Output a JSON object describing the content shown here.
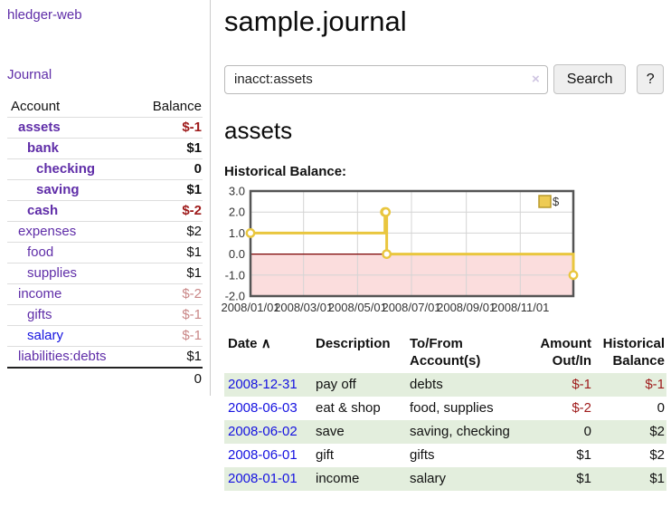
{
  "colors": {
    "link_purple": "#5f2da8",
    "link_blue": "#1512e0",
    "negative_strong": "#9e1a1a",
    "negative_faded": "#c98787",
    "row_stripe_green": "#e3eedd",
    "chart_line": "#e9c63e",
    "chart_marker_fill": "#ffffff",
    "chart_negative_fill": "#fbdddd",
    "chart_zero_line": "#7a0000",
    "chart_grid": "#d4d4d4",
    "chart_frame": "#545454",
    "legend_square_fill": "#eecb53",
    "legend_square_border": "#b9992c"
  },
  "sidebar": {
    "brand": "hledger-web",
    "journal_label": "Journal",
    "accounts": {
      "header_account": "Account",
      "header_balance": "Balance",
      "rows": [
        {
          "account": "assets",
          "balance": "$-1",
          "depth": 1,
          "bold": true,
          "neg": "strong"
        },
        {
          "account": "bank",
          "balance": "$1",
          "depth": 2,
          "bold": true,
          "neg": null
        },
        {
          "account": "checking",
          "balance": "0",
          "depth": 3,
          "bold": true,
          "neg": null
        },
        {
          "account": "saving",
          "balance": "$1",
          "depth": 3,
          "bold": true,
          "neg": null
        },
        {
          "account": "cash",
          "balance": "$-2",
          "depth": 2,
          "bold": true,
          "neg": "strong"
        },
        {
          "account": "expenses",
          "balance": "$2",
          "depth": 1,
          "bold": false,
          "neg": null
        },
        {
          "account": "food",
          "balance": "$1",
          "depth": 2,
          "bold": false,
          "neg": null
        },
        {
          "account": "supplies",
          "balance": "$1",
          "depth": 2,
          "bold": false,
          "neg": null
        },
        {
          "account": "income",
          "balance": "$-2",
          "depth": 1,
          "bold": false,
          "neg": "faded"
        },
        {
          "account": "gifts",
          "balance": "$-1",
          "depth": 2,
          "bold": false,
          "neg": "faded"
        },
        {
          "account": "salary",
          "balance": "$-1",
          "depth": 2,
          "bold": false,
          "neg": "faded",
          "link": "blue"
        },
        {
          "account": "liabilities:debts",
          "balance": "$1",
          "depth": 1,
          "bold": false,
          "neg": null
        }
      ],
      "total": "0"
    }
  },
  "main": {
    "title": "sample.journal",
    "search": {
      "value": "inacct:assets",
      "clear_icon": "×",
      "button_label": "Search",
      "help_label": "?"
    },
    "account_heading": "assets",
    "chart_label": "Historical Balance:"
  },
  "chart_data": {
    "type": "line",
    "step": true,
    "title": "Historical Balance",
    "legend": {
      "label": "$",
      "position": "top-right"
    },
    "x_range": [
      "2008-01-01",
      "2008-12-31"
    ],
    "ylim": [
      -2,
      3
    ],
    "grid": true,
    "negative_region_shaded": true,
    "y_ticks": [
      {
        "v": 3,
        "label": "3.0"
      },
      {
        "v": 2,
        "label": "2.0"
      },
      {
        "v": 1,
        "label": "1.0"
      },
      {
        "v": 0,
        "label": "0.0"
      },
      {
        "v": -1,
        "label": "-1.0"
      },
      {
        "v": -2,
        "label": "-2.0"
      }
    ],
    "x_ticks": [
      {
        "date": "2008-01-01",
        "label": "2008/01/01"
      },
      {
        "date": "2008-03-01",
        "label": "2008/03/01"
      },
      {
        "date": "2008-05-01",
        "label": "2008/05/01"
      },
      {
        "date": "2008-07-01",
        "label": "2008/07/01"
      },
      {
        "date": "2008-09-01",
        "label": "2008/09/01"
      },
      {
        "date": "2008-11-01",
        "label": "2008/11/01"
      }
    ],
    "series": [
      {
        "name": "$",
        "points": [
          [
            "2008-01-01",
            1.0
          ],
          [
            "2008-06-01",
            2.0
          ],
          [
            "2008-06-02",
            2.0
          ],
          [
            "2008-06-03",
            0.0
          ],
          [
            "2008-12-31",
            -1.0
          ]
        ]
      }
    ]
  },
  "register": {
    "headers": {
      "date": "Date",
      "sort_icon": "∧",
      "description": "Description",
      "accounts": "To/From Account(s)",
      "amount": "Amount Out/In",
      "balance": "Historical Balance"
    },
    "rows": [
      {
        "date": "2008-12-31",
        "description": "pay off",
        "accounts": "debts",
        "amount": "$-1",
        "balance": "$-1",
        "amount_neg": true,
        "balance_neg": true
      },
      {
        "date": "2008-06-03",
        "description": "eat & shop",
        "accounts": "food, supplies",
        "amount": "$-2",
        "balance": "0",
        "amount_neg": true,
        "balance_neg": false
      },
      {
        "date": "2008-06-02",
        "description": "save",
        "accounts": "saving, checking",
        "amount": "0",
        "balance": "$2",
        "amount_neg": false,
        "balance_neg": false
      },
      {
        "date": "2008-06-01",
        "description": "gift",
        "accounts": "gifts",
        "amount": "$1",
        "balance": "$2",
        "amount_neg": false,
        "balance_neg": false
      },
      {
        "date": "2008-01-01",
        "description": "income",
        "accounts": "salary",
        "amount": "$1",
        "balance": "$1",
        "amount_neg": false,
        "balance_neg": false
      }
    ]
  }
}
